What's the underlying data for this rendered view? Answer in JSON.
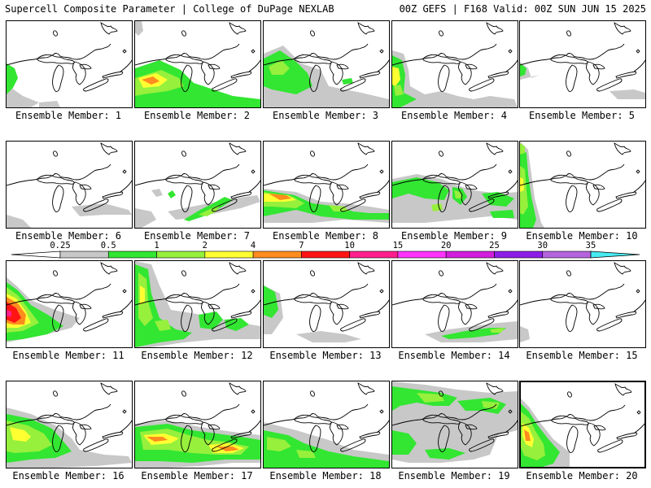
{
  "header": {
    "title_left": "Supercell Composite Parameter | College of DuPage NEXLAB",
    "title_right": "00Z GEFS | F168 Valid: 00Z SUN JUN 15 2025"
  },
  "panels": [
    {
      "member": 1,
      "label": "Ensemble Member: 1"
    },
    {
      "member": 2,
      "label": "Ensemble Member: 2"
    },
    {
      "member": 3,
      "label": "Ensemble Member: 3"
    },
    {
      "member": 4,
      "label": "Ensemble Member: 4"
    },
    {
      "member": 5,
      "label": "Ensemble Member: 5"
    },
    {
      "member": 6,
      "label": "Ensemble Member: 6"
    },
    {
      "member": 7,
      "label": "Ensemble Member: 7"
    },
    {
      "member": 8,
      "label": "Ensemble Member: 8"
    },
    {
      "member": 9,
      "label": "Ensemble Member: 9"
    },
    {
      "member": 10,
      "label": "Ensemble Member: 10"
    },
    {
      "member": 11,
      "label": "Ensemble Member: 11"
    },
    {
      "member": 12,
      "label": "Ensemble Member: 12"
    },
    {
      "member": 13,
      "label": "Ensemble Member: 13"
    },
    {
      "member": 14,
      "label": "Ensemble Member: 14"
    },
    {
      "member": 15,
      "label": "Ensemble Member: 15"
    },
    {
      "member": 16,
      "label": "Ensemble Member: 16"
    },
    {
      "member": 17,
      "label": "Ensemble Member: 17"
    },
    {
      "member": 18,
      "label": "Ensemble Member: 18"
    },
    {
      "member": 19,
      "label": "Ensemble Member: 19"
    },
    {
      "member": 20,
      "label": "Ensemble Member: 20"
    }
  ],
  "selected_member": 20,
  "legend": {
    "ticks": [
      "0.25",
      "0.5",
      "1",
      "2",
      "4",
      "7",
      "10",
      "15",
      "20",
      "25",
      "30",
      "35"
    ],
    "colors": [
      "#c8c8c8",
      "#32e632",
      "#96f03c",
      "#ffff32",
      "#ff8c1e",
      "#ff1414",
      "#ff1e8c",
      "#ff32ff",
      "#d21edc",
      "#8c1ee6",
      "#b464dc",
      "#46eaf0"
    ]
  },
  "field_colors": {
    "gray": "#c8c8c8",
    "green": "#32e632",
    "light_green": "#96f03c",
    "yellow": "#ffff32",
    "orange": "#ff8c1e",
    "red": "#ff1414",
    "magenta": "#ff1e8c"
  }
}
